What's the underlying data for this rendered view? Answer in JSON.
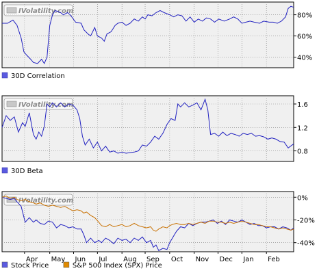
{
  "watermark": "IVolatility.com",
  "colors": {
    "blue": "#2020c0",
    "orange": "#c87000",
    "panel": "#f0f0f0",
    "grid": "#808080",
    "frame": "#000000"
  },
  "chart_data": [
    {
      "type": "line",
      "legend_label": "30D Correlation",
      "legend_color": "#5a5ae0",
      "ylim": [
        30,
        92
      ],
      "ytick_values": [
        40,
        60,
        80
      ],
      "ytick_labels": [
        "40%",
        "60%",
        "80%"
      ],
      "x": [
        0,
        8,
        16,
        22,
        28,
        32,
        36,
        42,
        46,
        52,
        58,
        62,
        66,
        70,
        74,
        78,
        82,
        86,
        90,
        96,
        100,
        108,
        116,
        120,
        126,
        130,
        136,
        140,
        146,
        150,
        154,
        160,
        166,
        170,
        176,
        182,
        188,
        194,
        200,
        206,
        210,
        214,
        220,
        226,
        232,
        238,
        246,
        252,
        258,
        264,
        270,
        276,
        282,
        288,
        294,
        300,
        306,
        312,
        318,
        326,
        334,
        340,
        346,
        352,
        358,
        364,
        370,
        378,
        384,
        392,
        398,
        404,
        410,
        416,
        420,
        424,
        428
      ],
      "series": [
        {
          "values": [
            72,
            72,
            75,
            70,
            58,
            45,
            42,
            38,
            35,
            34,
            38,
            34,
            40,
            70,
            80,
            84,
            83,
            82,
            80,
            82,
            80,
            73,
            72,
            66,
            62,
            60,
            68,
            60,
            58,
            55,
            62,
            64,
            70,
            72,
            73,
            70,
            72,
            76,
            74,
            78,
            76,
            80,
            79,
            82,
            84,
            82,
            80,
            78,
            80,
            79,
            74,
            78,
            73,
            76,
            74,
            77,
            76,
            73,
            76,
            74,
            76,
            78,
            76,
            72,
            73,
            74,
            73,
            72,
            74,
            73,
            73,
            72,
            74,
            78,
            86,
            88,
            87
          ]
        }
      ]
    },
    {
      "type": "line",
      "legend_label": "30D Beta",
      "legend_color": "#5a5ae0",
      "ylim": [
        0.62,
        1.74
      ],
      "ytick_values": [
        0.8,
        1.2,
        1.6
      ],
      "ytick_labels": [
        "0.8",
        "1.2",
        "1.6"
      ],
      "x": [
        0,
        6,
        12,
        18,
        24,
        30,
        34,
        40,
        46,
        50,
        54,
        58,
        62,
        66,
        70,
        74,
        80,
        86,
        92,
        98,
        104,
        110,
        114,
        118,
        122,
        128,
        134,
        140,
        146,
        152,
        158,
        164,
        170,
        176,
        182,
        188,
        194,
        200,
        206,
        212,
        218,
        224,
        230,
        236,
        242,
        248,
        254,
        258,
        262,
        268,
        274,
        280,
        286,
        292,
        298,
        302,
        306,
        312,
        318,
        324,
        330,
        336,
        342,
        348,
        354,
        360,
        366,
        372,
        378,
        384,
        390,
        396,
        402,
        408,
        414,
        420,
        428
      ],
      "series": [
        {
          "values": [
            1.2,
            1.4,
            1.32,
            1.38,
            1.12,
            1.28,
            1.22,
            1.45,
            1.08,
            1.0,
            1.12,
            1.05,
            1.22,
            1.6,
            1.55,
            1.62,
            1.55,
            1.62,
            1.55,
            1.6,
            1.58,
            1.5,
            1.35,
            1.05,
            0.9,
            1.0,
            0.85,
            0.95,
            0.8,
            0.88,
            0.78,
            0.8,
            0.76,
            0.78,
            0.76,
            0.77,
            0.78,
            0.8,
            0.9,
            0.88,
            0.95,
            1.05,
            1.0,
            1.1,
            1.25,
            1.35,
            1.32,
            1.6,
            1.55,
            1.62,
            1.55,
            1.58,
            1.62,
            1.5,
            1.68,
            1.5,
            1.08,
            1.1,
            1.05,
            1.12,
            1.06,
            1.1,
            1.08,
            1.05,
            1.1,
            1.08,
            1.1,
            1.05,
            1.06,
            1.04,
            1.0,
            1.02,
            1.0,
            0.96,
            0.95,
            0.85,
            0.92
          ]
        }
      ]
    },
    {
      "type": "line",
      "ylim": [
        -48,
        5
      ],
      "ytick_values": [
        0,
        -20,
        -40
      ],
      "ytick_labels": [
        "0%",
        "-20%",
        "-40%"
      ],
      "x": [
        0,
        6,
        12,
        18,
        22,
        28,
        34,
        40,
        46,
        50,
        56,
        62,
        68,
        74,
        80,
        86,
        92,
        98,
        104,
        110,
        116,
        120,
        124,
        130,
        136,
        142,
        146,
        152,
        158,
        164,
        170,
        176,
        182,
        188,
        194,
        200,
        206,
        212,
        218,
        222,
        226,
        230,
        236,
        242,
        246,
        250,
        256,
        262,
        268,
        274,
        280,
        286,
        292,
        298,
        304,
        310,
        316,
        322,
        328,
        334,
        340,
        346,
        352,
        358,
        364,
        370,
        376,
        382,
        388,
        394,
        400,
        406,
        412,
        418,
        424,
        428
      ],
      "xtick_positions": [
        33,
        70,
        105,
        140,
        176,
        210,
        246,
        282,
        317,
        352,
        388
      ],
      "xtick_labels": [
        "Apr",
        "May",
        "Jun",
        "Jul",
        "Aug",
        "Sep",
        "Oct",
        "Nov",
        "Dec",
        "Jan",
        "Feb"
      ],
      "series": [
        {
          "name": "Stock Price",
          "color": "#2020c0",
          "legend_color": "#5a5ae0",
          "values": [
            0,
            -1,
            -2,
            -1,
            -4,
            -8,
            -22,
            -18,
            -22,
            -20,
            -23,
            -24,
            -21,
            -22,
            -27,
            -24,
            -25,
            -27,
            -26,
            -28,
            -28,
            -33,
            -40,
            -36,
            -40,
            -38,
            -40,
            -36,
            -38,
            -41,
            -36,
            -38,
            -37,
            -40,
            -36,
            -38,
            -35,
            -40,
            -38,
            -44,
            -42,
            -47,
            -45,
            -46,
            -40,
            -36,
            -30,
            -26,
            -27,
            -23,
            -25,
            -23,
            -22,
            -22,
            -21,
            -20,
            -23,
            -21,
            -24,
            -20,
            -21,
            -22,
            -20,
            -22,
            -24,
            -23,
            -25,
            -25,
            -27,
            -26,
            -26,
            -28,
            -26,
            -27,
            -29,
            -27
          ]
        },
        {
          "name": "S&P 500 Index (SPX) Price",
          "color": "#c87000",
          "legend_color": "#e08a00",
          "values": [
            0,
            1,
            -1,
            0,
            -2,
            -3,
            -2,
            -4,
            -5,
            -6,
            -5,
            -7,
            -8,
            -7,
            -8,
            -9,
            -8,
            -10,
            -12,
            -11,
            -12,
            -14,
            -13,
            -16,
            -18,
            -22,
            -25,
            -26,
            -24,
            -26,
            -25,
            -24,
            -26,
            -25,
            -23,
            -25,
            -26,
            -27,
            -26,
            -29,
            -30,
            -28,
            -26,
            -27,
            -25,
            -24,
            -23,
            -24,
            -24,
            -23,
            -24,
            -23,
            -22,
            -23,
            -21,
            -21,
            -22,
            -22,
            -23,
            -22,
            -23,
            -22,
            -21,
            -22,
            -23,
            -24,
            -24,
            -25,
            -26,
            -26,
            -27,
            -28,
            -27,
            -28,
            -29,
            -28
          ]
        }
      ]
    }
  ]
}
